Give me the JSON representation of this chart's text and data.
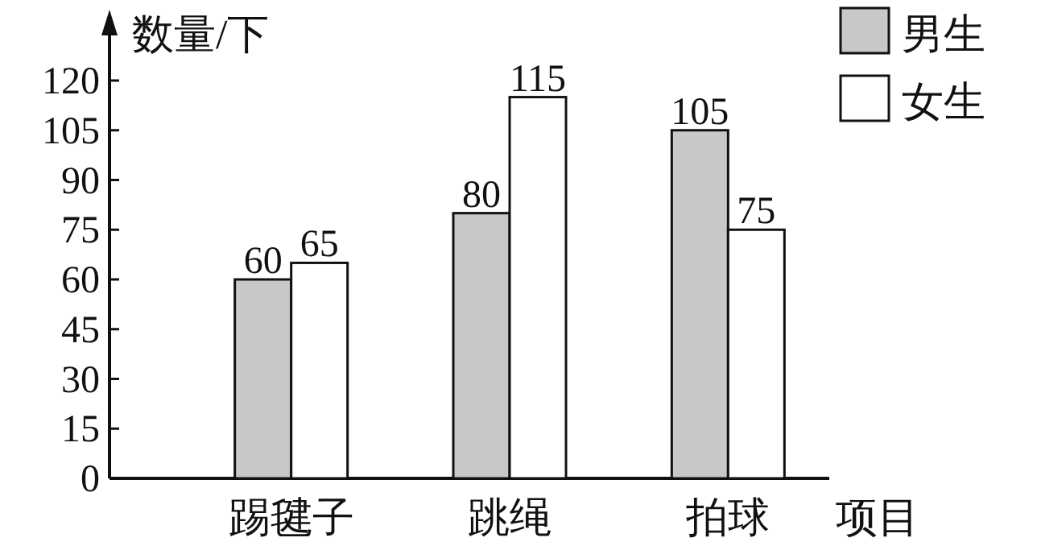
{
  "chart_data": {
    "type": "bar",
    "xlabel": "项目",
    "ylabel": "数量/下",
    "categories": [
      "踢毽子",
      "跳绳",
      "拍球"
    ],
    "series": [
      {
        "name": "男生",
        "color": "#c8c8c8",
        "values": [
          60,
          80,
          105
        ]
      },
      {
        "name": "女生",
        "color": "#ffffff",
        "values": [
          65,
          115,
          75
        ]
      }
    ],
    "ylim": [
      0,
      120
    ],
    "yticks": [
      0,
      15,
      30,
      45,
      60,
      75,
      90,
      105,
      120
    ],
    "data_labels": true,
    "legend": "top right"
  }
}
